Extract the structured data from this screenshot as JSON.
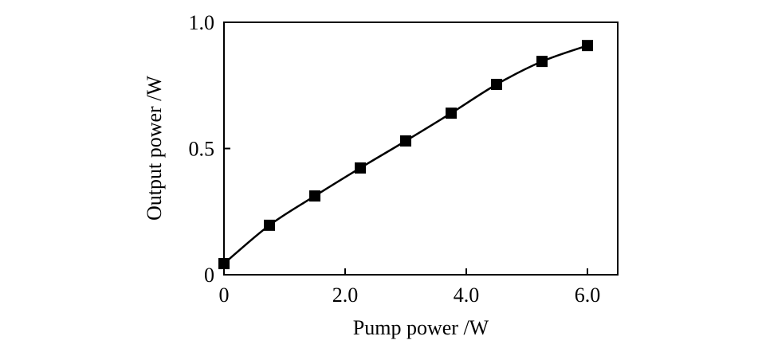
{
  "chart_data": {
    "type": "line",
    "x_label": "Pump power /W",
    "y_label": "Output power /W",
    "x": [
      0,
      0.75,
      1.5,
      2.25,
      3.0,
      3.75,
      4.5,
      5.25,
      6.0
    ],
    "series": [
      {
        "color": "#000000",
        "values": [
          0.044,
          0.196,
          0.312,
          0.423,
          0.53,
          0.64,
          0.754,
          0.845,
          0.908
        ]
      }
    ],
    "xlim": [
      0,
      6.5
    ],
    "ylim": [
      0,
      1
    ],
    "xticks": [
      0,
      {
        "value": 2,
        "label": "2.0"
      },
      {
        "value": 4,
        "label": "4.0"
      },
      {
        "value": 6,
        "label": "6.0"
      }
    ],
    "yticks": [
      0,
      0.5,
      {
        "value": 1,
        "label": "1.0"
      }
    ]
  }
}
